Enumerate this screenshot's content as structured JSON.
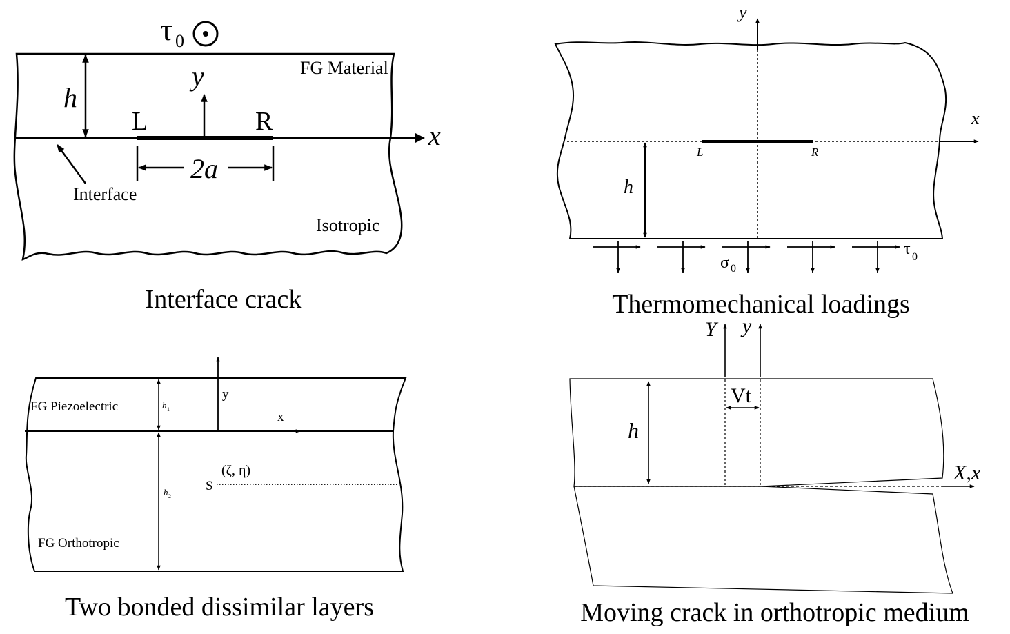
{
  "panels": {
    "interface_crack": {
      "caption": "Interface crack",
      "load_symbol": "τ",
      "load_subscript": "0",
      "top_material": "FG Material",
      "bottom_material": "Isotropic",
      "interface_label": "Interface",
      "thickness_label": "h",
      "left_tip": "L",
      "right_tip": "R",
      "crack_length": "2a",
      "x_axis": "x",
      "y_axis": "y"
    },
    "thermomechanical": {
      "caption": "Thermomechanical loadings",
      "x_axis": "x",
      "y_axis": "y",
      "thickness_label": "h",
      "left_tip": "L",
      "right_tip": "R",
      "normal_load": "σ",
      "normal_sub": "0",
      "shear_load": "τ",
      "shear_sub": "0"
    },
    "two_layers": {
      "caption": "Two bonded dissimilar layers",
      "top_material": "FG Piezoelectric",
      "bottom_material": "FG Orthotropic",
      "h1_symbol": "h",
      "h1_sub": "1",
      "h2_symbol": "h",
      "h2_sub": "2",
      "x_axis": "x",
      "y_axis": "y",
      "source_label": "S",
      "source_coords": "(ζ, η)"
    },
    "moving_crack": {
      "caption": "Moving crack in orthotropic medium",
      "global_y": "Y",
      "local_y": "y",
      "x_axes": "X,x",
      "thickness_label": "h",
      "offset_label": "Vt"
    }
  }
}
